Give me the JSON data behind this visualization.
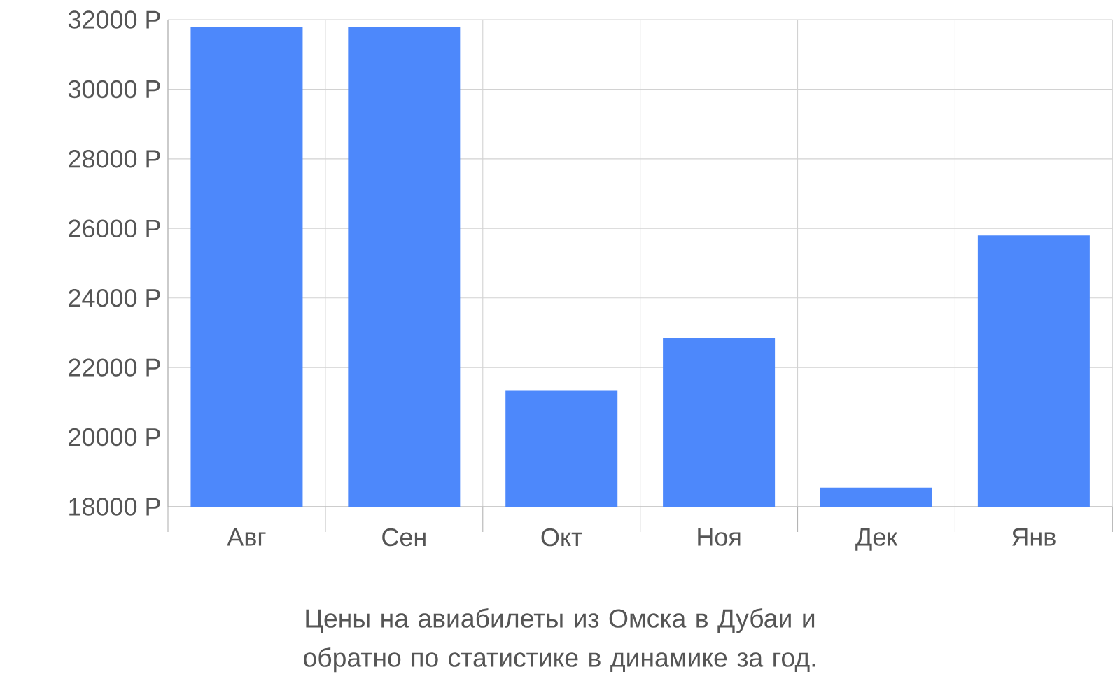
{
  "chart_data": {
    "type": "bar",
    "title": "Цены на авиабилеты из Омска в Дубаи и обратно по статистике в динамике за год.",
    "categories": [
      "Авг",
      "Сен",
      "Окт",
      "Ноя",
      "Дек",
      "Янв"
    ],
    "values": [
      31800,
      31800,
      21350,
      22850,
      18550,
      25800
    ],
    "color": "#4d88fb",
    "ylim": [
      18000,
      32000
    ],
    "yticks": [
      {
        "value": 18000,
        "label": "18000 Р"
      },
      {
        "value": 20000,
        "label": "20000 Р"
      },
      {
        "value": 22000,
        "label": "22000 Р"
      },
      {
        "value": 24000,
        "label": "24000 Р"
      },
      {
        "value": 26000,
        "label": "26000 Р"
      },
      {
        "value": 28000,
        "label": "28000 Р"
      },
      {
        "value": 30000,
        "label": "30000 Р"
      },
      {
        "value": 32000,
        "label": "32000 Р"
      }
    ],
    "grid": true
  }
}
